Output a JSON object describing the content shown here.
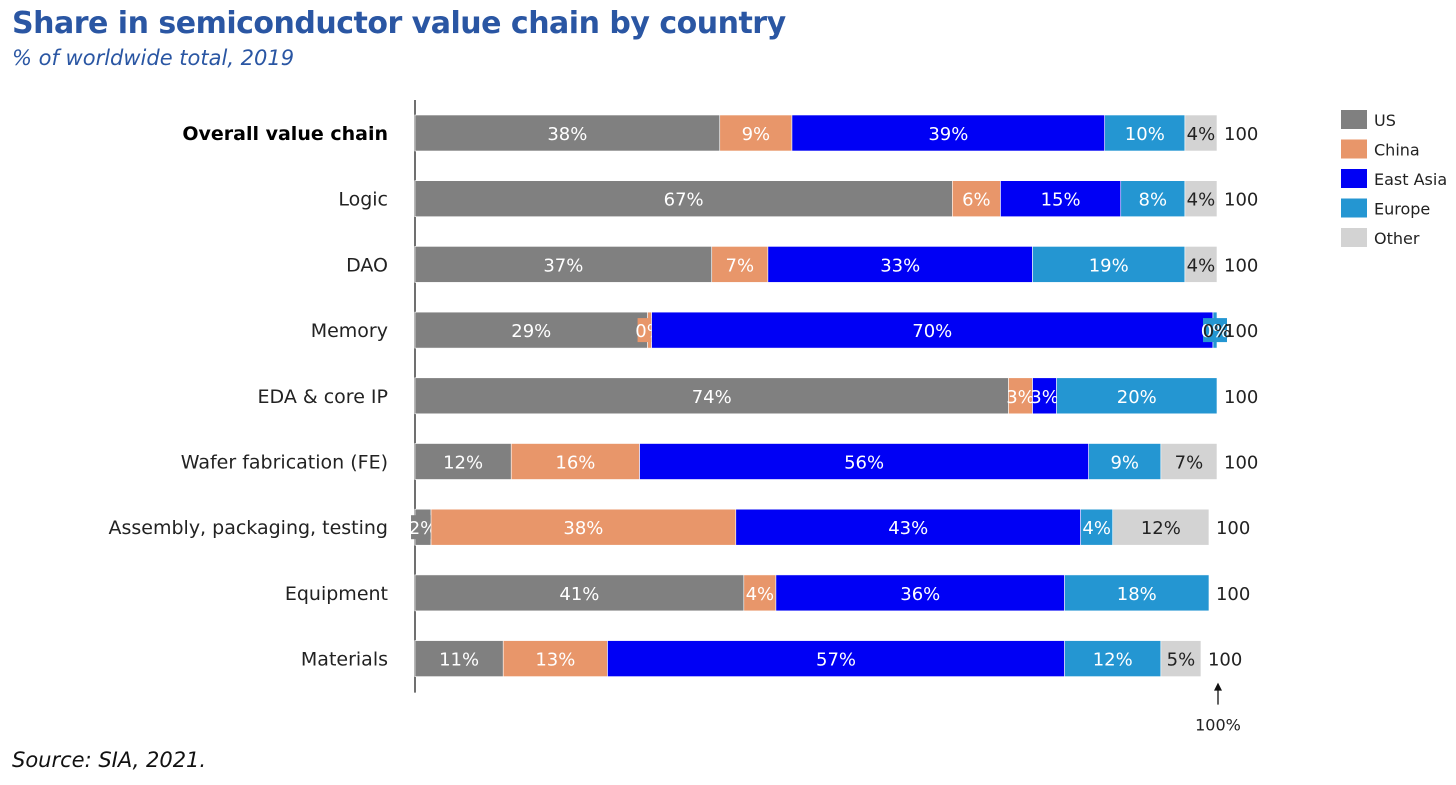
{
  "title": "Share in semiconductor value chain by country",
  "subtitle": "% of worldwide total, 2019",
  "source": "Source: SIA, 2021.",
  "chart_data": {
    "type": "bar",
    "orientation": "horizontal",
    "stacked": true,
    "title": "Share in semiconductor value chain by country",
    "subtitle": "% of worldwide total, 2019",
    "xlim": [
      0,
      100
    ],
    "grid": false,
    "legend_position": "right",
    "categories": [
      "Overall value chain",
      "Logic",
      "DAO",
      "Memory",
      "EDA & core IP",
      "Wafer fabrication (FE)",
      "Assembly, packaging, testing",
      "Equipment",
      "Materials"
    ],
    "bold_categories": [
      "Overall value chain"
    ],
    "series": [
      {
        "name": "US",
        "color": "#808080",
        "values": [
          38,
          67,
          37,
          29,
          74,
          12,
          2,
          41,
          11
        ],
        "labels": [
          "38%",
          "67%",
          "37%",
          "29%",
          "74%",
          "12%",
          "2%",
          "41%",
          "11%"
        ]
      },
      {
        "name": "China",
        "color": "#e8966a",
        "values": [
          9,
          6,
          7,
          0.5,
          3,
          16,
          38,
          4,
          13
        ],
        "labels": [
          "9%",
          "6%",
          "7%",
          "0%",
          "3%",
          "16%",
          "38%",
          "4%",
          "13%"
        ]
      },
      {
        "name": "East Asia",
        "color": "#0000f5",
        "values": [
          39,
          15,
          33,
          70,
          3,
          56,
          43,
          36,
          57
        ],
        "labels": [
          "39%",
          "15%",
          "33%",
          "70%",
          "3%",
          "56%",
          "43%",
          "36%",
          "57%"
        ]
      },
      {
        "name": "Europe",
        "color": "#2496d2",
        "values": [
          10,
          8,
          19,
          0.5,
          20,
          9,
          4,
          18,
          12
        ],
        "labels": [
          "10%",
          "8%",
          "19%",
          "0%",
          "20%",
          "9%",
          "4%",
          "18%",
          "12%"
        ]
      },
      {
        "name": "Other",
        "color": "#d3d3d3",
        "values": [
          4,
          4,
          4,
          0,
          0,
          7,
          12,
          0,
          5
        ],
        "labels": [
          "4%",
          "4%",
          "4%",
          "0%",
          "",
          "7%",
          "12%",
          "",
          "5%"
        ]
      }
    ],
    "totals": [
      "100",
      "100",
      "100",
      "100",
      "100",
      "100",
      "100",
      "100",
      "100"
    ],
    "annotation": "100%"
  }
}
